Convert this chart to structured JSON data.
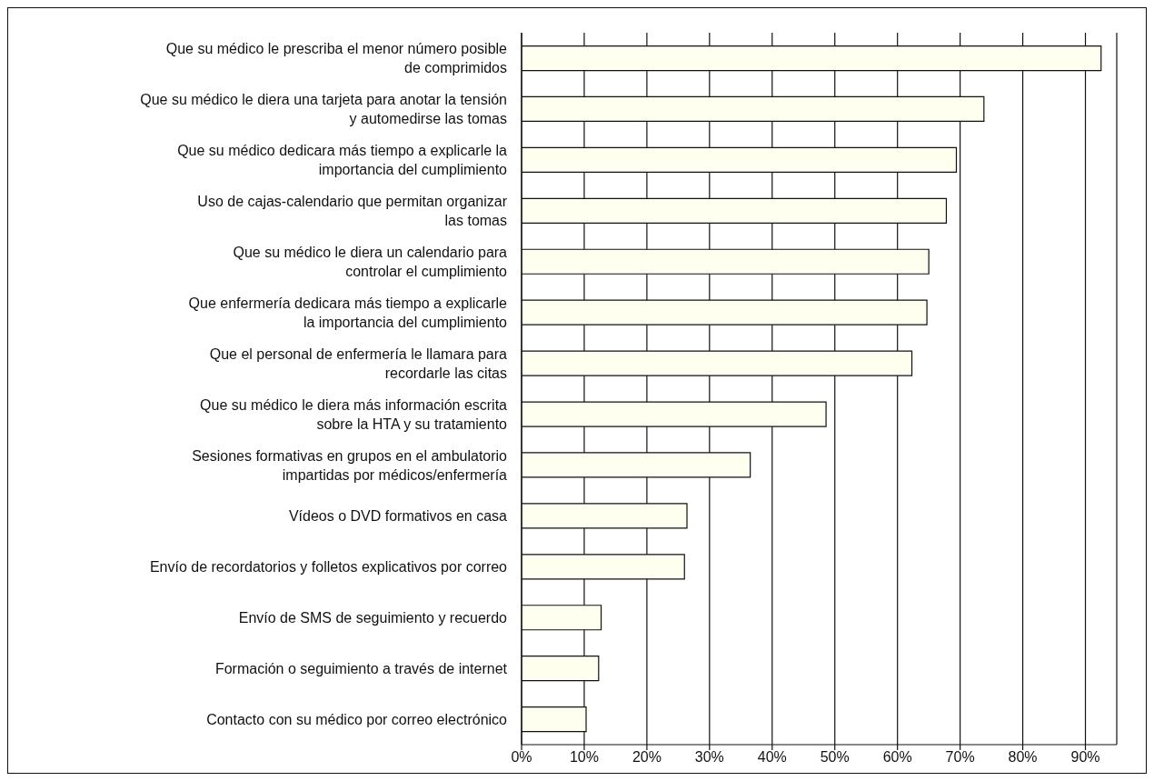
{
  "chart_data": {
    "type": "bar",
    "orientation": "horizontal",
    "categories": [
      "Que su médico le prescriba el menor número posible\nde comprimidos",
      "Que su médico le diera una tarjeta para anotar la tensión\ny automedirse las tomas",
      "Que su médico dedicara más tiempo a explicarle la\nimportancia del cumplimiento",
      "Uso de cajas-calendario que permitan organizar\nlas tomas",
      "Que su médico le diera un calendario para\ncontrolar el cumplimiento",
      "Que enfermería dedicara más tiempo a explicarle\nla importancia del cumplimiento",
      "Que el personal de enfermería le llamara para\nrecordarle las citas",
      "Que su médico le diera más información escrita\nsobre la HTA y su tratamiento",
      "Sesiones formativas en grupos en el ambulatorio\nimpartidas por médicos/enfermería",
      "Vídeos o DVD formativos en casa",
      "Envío de recordatorios y folletos explicativos por correo",
      "Envío de SMS de seguimiento y recuerdo",
      "Formación o seguimiento a través de internet",
      "Contacto con su médico por correo electrónico"
    ],
    "values": [
      92.5,
      73.8,
      69.4,
      67.8,
      65.0,
      64.7,
      62.3,
      48.6,
      36.5,
      26.4,
      26.0,
      12.7,
      12.3,
      10.3
    ],
    "color": "#fffff0",
    "xlim": [
      0,
      95
    ],
    "xticks": [
      {
        "value": 0,
        "label": "0%"
      },
      {
        "value": 10,
        "label": "10%"
      },
      {
        "value": 20,
        "label": "20%"
      },
      {
        "value": 30,
        "label": "30%"
      },
      {
        "value": 40,
        "label": "40%"
      },
      {
        "value": 50,
        "label": "50%"
      },
      {
        "value": 60,
        "label": "60%"
      },
      {
        "value": 70,
        "label": "70%"
      },
      {
        "value": 80,
        "label": "80%"
      },
      {
        "value": 90,
        "label": "90%"
      }
    ],
    "grid": "x",
    "legend": false
  }
}
